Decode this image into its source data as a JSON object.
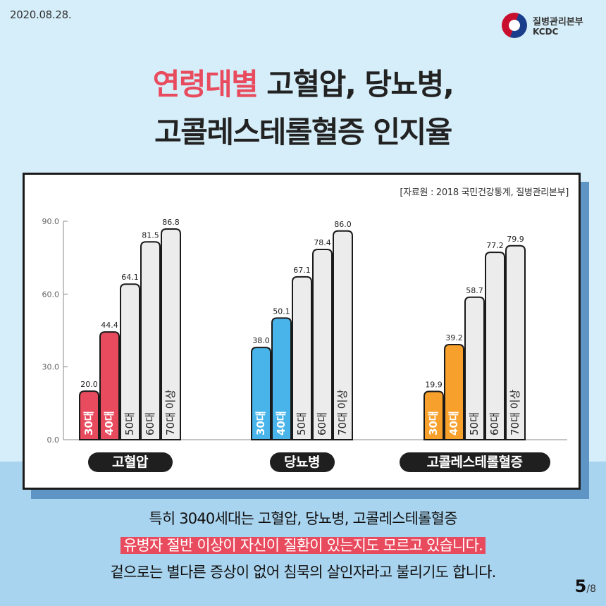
{
  "date": "2020.08.28.",
  "logo": {
    "org_kr": "질병관리본부",
    "org_en": "KCDC"
  },
  "title": {
    "highlight": "연령대별",
    "line1_rest": " 고혈압, 당뇨병,",
    "line2": "고콜레스테롤혈증 인지율"
  },
  "source": "[자료원 : 2018 국민건강통계, 질병관리본부]",
  "chart_data": {
    "type": "bar",
    "ylim": [
      0,
      90
    ],
    "yticks": [
      "0.0",
      "30.0",
      "60.0",
      "90.0"
    ],
    "age_groups": [
      "30대",
      "40대",
      "50대",
      "60대",
      "70대 이상"
    ],
    "groups": [
      {
        "name": "고혈압",
        "values": [
          20.0,
          44.4,
          64.1,
          81.5,
          86.8
        ],
        "color": "#e94b5e"
      },
      {
        "name": "당뇨병",
        "values": [
          38.0,
          50.1,
          67.1,
          78.4,
          86.0
        ],
        "color": "#49b4ea"
      },
      {
        "name": "고콜레스테롤혈증",
        "values": [
          19.9,
          39.2,
          58.7,
          77.2,
          79.9
        ],
        "color": "#f7a02c"
      }
    ],
    "other_color": "#ececec"
  },
  "body": {
    "line1": "특히 3040세대는 고혈압, 당뇨병, 고콜레스테롤혈증",
    "line2": "유병자 절반 이상이 자신이 질환이 있는지도 모르고 있습니다.",
    "line3": "겉으로는 별다른 증상이 없어 침묵의 살인자라고 불리기도 합니다."
  },
  "page": {
    "current": "5",
    "total": "/8"
  }
}
